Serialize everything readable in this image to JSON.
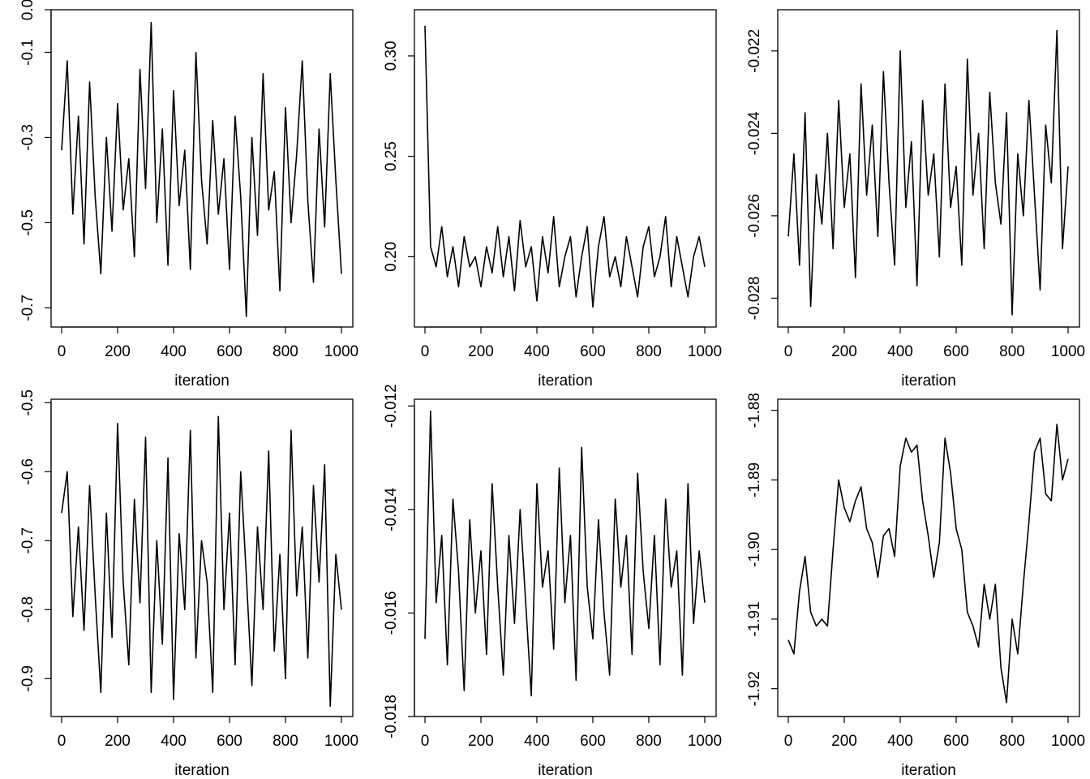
{
  "chart_data": [
    {
      "type": "line",
      "xlabel": "iteration",
      "ylabel": "",
      "xlim": [
        0,
        1000
      ],
      "ylim": [
        -0.745,
        0.0
      ],
      "xticks": [
        "0",
        "200",
        "400",
        "600",
        "800",
        "1000"
      ],
      "yticks": [
        0.0,
        -0.1,
        -0.3,
        -0.5,
        -0.7
      ],
      "ytick_labels": [
        "0.0",
        "-0.1",
        "-0.3",
        "-0.5",
        "-0.7"
      ],
      "x_step": 20,
      "values": [
        -0.33,
        -0.12,
        -0.48,
        -0.25,
        -0.55,
        -0.17,
        -0.44,
        -0.62,
        -0.3,
        -0.52,
        -0.22,
        -0.47,
        -0.35,
        -0.58,
        -0.14,
        -0.42,
        -0.03,
        -0.5,
        -0.28,
        -0.6,
        -0.19,
        -0.46,
        -0.33,
        -0.61,
        -0.1,
        -0.4,
        -0.55,
        -0.26,
        -0.48,
        -0.35,
        -0.61,
        -0.25,
        -0.44,
        -0.72,
        -0.3,
        -0.53,
        -0.15,
        -0.47,
        -0.38,
        -0.66,
        -0.23,
        -0.5,
        -0.34,
        -0.12,
        -0.45,
        -0.64,
        -0.28,
        -0.51,
        -0.15,
        -0.4,
        -0.62
      ]
    },
    {
      "type": "line",
      "xlabel": "iteration",
      "ylabel": "",
      "xlim": [
        0,
        1000
      ],
      "ylim": [
        0.165,
        0.323
      ],
      "xticks": [
        "0",
        "200",
        "400",
        "600",
        "800",
        "1000"
      ],
      "yticks": [
        0.3,
        0.25,
        0.2
      ],
      "ytick_labels": [
        "0.30",
        "0.25",
        "0.20"
      ],
      "x_step": 20,
      "values": [
        0.315,
        0.205,
        0.195,
        0.215,
        0.19,
        0.205,
        0.185,
        0.21,
        0.195,
        0.2,
        0.185,
        0.205,
        0.192,
        0.215,
        0.19,
        0.21,
        0.183,
        0.218,
        0.195,
        0.205,
        0.178,
        0.21,
        0.192,
        0.22,
        0.185,
        0.2,
        0.21,
        0.18,
        0.2,
        0.215,
        0.175,
        0.205,
        0.22,
        0.19,
        0.2,
        0.185,
        0.21,
        0.195,
        0.18,
        0.205,
        0.215,
        0.19,
        0.2,
        0.22,
        0.185,
        0.21,
        0.195,
        0.18,
        0.2,
        0.21,
        0.195
      ]
    },
    {
      "type": "line",
      "xlabel": "iteration",
      "ylabel": "",
      "xlim": [
        0,
        1000
      ],
      "ylim": [
        -0.0287,
        -0.021
      ],
      "xticks": [
        "0",
        "200",
        "400",
        "600",
        "800",
        "1000"
      ],
      "yticks": [
        -0.022,
        -0.024,
        -0.026,
        -0.028
      ],
      "ytick_labels": [
        "-0.022",
        "-0.024",
        "-0.026",
        "-0.028"
      ],
      "x_step": 20,
      "values": [
        -0.0265,
        -0.0245,
        -0.0272,
        -0.0235,
        -0.0282,
        -0.025,
        -0.0262,
        -0.024,
        -0.0268,
        -0.0232,
        -0.0258,
        -0.0245,
        -0.0275,
        -0.0228,
        -0.0255,
        -0.0238,
        -0.0265,
        -0.0225,
        -0.0252,
        -0.0272,
        -0.022,
        -0.0258,
        -0.0242,
        -0.0277,
        -0.0232,
        -0.0255,
        -0.0245,
        -0.027,
        -0.0228,
        -0.0258,
        -0.0248,
        -0.0272,
        -0.0222,
        -0.0255,
        -0.024,
        -0.0268,
        -0.023,
        -0.0252,
        -0.0262,
        -0.0235,
        -0.0284,
        -0.0245,
        -0.026,
        -0.0232,
        -0.0255,
        -0.0278,
        -0.0238,
        -0.0252,
        -0.0215,
        -0.0268,
        -0.0248
      ]
    },
    {
      "type": "line",
      "xlabel": "iteration",
      "ylabel": "",
      "xlim": [
        0,
        1000
      ],
      "ylim": [
        -0.955,
        -0.495
      ],
      "xticks": [
        "0",
        "200",
        "400",
        "600",
        "800",
        "1000"
      ],
      "yticks": [
        -0.5,
        -0.6,
        -0.7,
        -0.8,
        -0.9
      ],
      "ytick_labels": [
        "-0.5",
        "-0.6",
        "-0.7",
        "-0.8",
        "-0.9"
      ],
      "x_step": 20,
      "values": [
        -0.66,
        -0.6,
        -0.81,
        -0.68,
        -0.83,
        -0.62,
        -0.78,
        -0.92,
        -0.66,
        -0.84,
        -0.53,
        -0.76,
        -0.88,
        -0.64,
        -0.79,
        -0.55,
        -0.92,
        -0.7,
        -0.85,
        -0.58,
        -0.93,
        -0.69,
        -0.8,
        -0.54,
        -0.87,
        -0.7,
        -0.76,
        -0.92,
        -0.52,
        -0.8,
        -0.66,
        -0.88,
        -0.6,
        -0.75,
        -0.91,
        -0.68,
        -0.8,
        -0.57,
        -0.86,
        -0.72,
        -0.9,
        -0.54,
        -0.78,
        -0.68,
        -0.87,
        -0.62,
        -0.76,
        -0.59,
        -0.94,
        -0.72,
        -0.8
      ]
    },
    {
      "type": "line",
      "xlabel": "iteration",
      "ylabel": "",
      "xlim": [
        0,
        1000
      ],
      "ylim": [
        -0.018,
        -0.01187
      ],
      "xticks": [
        "0",
        "200",
        "400",
        "600",
        "800",
        "1000"
      ],
      "yticks": [
        -0.012,
        -0.014,
        -0.016,
        -0.018
      ],
      "ytick_labels": [
        "-0.012",
        "-0.014",
        "-0.016",
        "-0.018"
      ],
      "x_step": 20,
      "values": [
        -0.0165,
        -0.0121,
        -0.0158,
        -0.0145,
        -0.017,
        -0.0138,
        -0.0152,
        -0.0175,
        -0.0142,
        -0.016,
        -0.0148,
        -0.0168,
        -0.0135,
        -0.0155,
        -0.0172,
        -0.0145,
        -0.0162,
        -0.014,
        -0.0158,
        -0.0176,
        -0.0135,
        -0.0155,
        -0.0148,
        -0.0167,
        -0.0132,
        -0.0158,
        -0.0145,
        -0.0173,
        -0.0128,
        -0.0155,
        -0.0165,
        -0.0142,
        -0.016,
        -0.0172,
        -0.0138,
        -0.0155,
        -0.0145,
        -0.0168,
        -0.0133,
        -0.0152,
        -0.0163,
        -0.0145,
        -0.017,
        -0.0138,
        -0.0155,
        -0.0148,
        -0.0172,
        -0.0135,
        -0.0162,
        -0.0148,
        -0.0158
      ]
    },
    {
      "type": "line",
      "xlabel": "iteration",
      "ylabel": "",
      "xlim": [
        0,
        1000
      ],
      "ylim": [
        -1.924,
        -1.8784
      ],
      "xticks": [
        "0",
        "200",
        "400",
        "600",
        "800",
        "1000"
      ],
      "yticks": [
        -1.88,
        -1.89,
        -1.9,
        -1.91,
        -1.92
      ],
      "ytick_labels": [
        "-1.88",
        "-1.89",
        "-1.90",
        "-1.91",
        "-1.92"
      ],
      "x_step": 20,
      "values": [
        -1.913,
        -1.915,
        -1.906,
        -1.901,
        -1.909,
        -1.911,
        -1.91,
        -1.911,
        -1.9,
        -1.89,
        -1.894,
        -1.896,
        -1.893,
        -1.891,
        -1.897,
        -1.899,
        -1.904,
        -1.898,
        -1.897,
        -1.901,
        -1.888,
        -1.884,
        -1.886,
        -1.885,
        -1.893,
        -1.898,
        -1.904,
        -1.899,
        -1.884,
        -1.889,
        -1.897,
        -1.9,
        -1.909,
        -1.911,
        -1.914,
        -1.905,
        -1.91,
        -1.905,
        -1.917,
        -1.922,
        -1.91,
        -1.915,
        -1.905,
        -1.896,
        -1.886,
        -1.884,
        -1.892,
        -1.893,
        -1.882,
        -1.89,
        -1.887
      ]
    }
  ]
}
